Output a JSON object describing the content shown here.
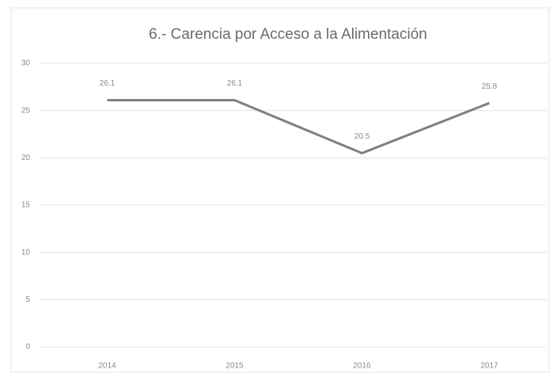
{
  "chart_data": {
    "type": "line",
    "title": "6.- Carencia por Acceso a la Alimentación",
    "categories": [
      "2014",
      "2015",
      "2016",
      "2017"
    ],
    "series": [
      {
        "name": "Carencia por Acceso a la Alimentación",
        "color": "#7f7f7f",
        "values": [
          26.1,
          26.1,
          20.5,
          25.8
        ]
      }
    ],
    "ylim": [
      0,
      30
    ],
    "yticks": [
      0,
      5,
      10,
      15,
      20,
      25,
      30
    ],
    "grid": true
  }
}
